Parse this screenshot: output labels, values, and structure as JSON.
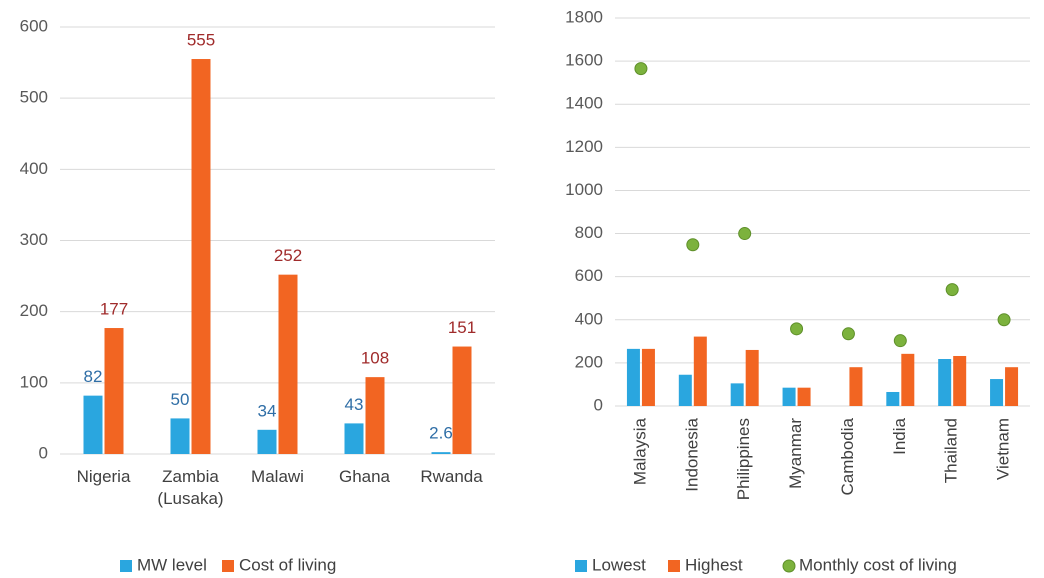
{
  "chart_data": [
    {
      "type": "bar",
      "categories": [
        "Nigeria",
        "Zambia (Lusaka)",
        "Malawi",
        "Ghana",
        "Rwanda"
      ],
      "series": [
        {
          "name": "MW level",
          "color": "#2aa6df",
          "label_color": "#2f6ea6",
          "values": [
            82,
            50,
            34,
            43,
            2.6
          ]
        },
        {
          "name": "Cost of living",
          "color": "#f26522",
          "label_color": "#a02b2b",
          "values": [
            177,
            555,
            252,
            108,
            151
          ]
        }
      ],
      "ylim": [
        0,
        600
      ],
      "yticks": [
        0,
        100,
        200,
        300,
        400,
        500,
        600
      ],
      "grid": true,
      "data_labels": true,
      "legend": "bottom"
    },
    {
      "type": "combo",
      "categories": [
        "Malaysia",
        "Indonesia",
        "Philippines",
        "Myanmar",
        "Cambodia",
        "India",
        "Thailand",
        "Vietnam"
      ],
      "series": [
        {
          "name": "Lowest",
          "type": "bar",
          "color": "#2aa6df",
          "values": [
            265,
            145,
            105,
            85,
            null,
            65,
            218,
            125
          ]
        },
        {
          "name": "Highest",
          "type": "bar",
          "color": "#f26522",
          "values": [
            265,
            322,
            260,
            85,
            180,
            242,
            232,
            180
          ]
        },
        {
          "name": "Monthly cost of living",
          "type": "scatter",
          "color": "#7cb23d",
          "values": [
            1565,
            748,
            800,
            358,
            335,
            303,
            540,
            400
          ]
        }
      ],
      "ylim": [
        0,
        1800
      ],
      "yticks": [
        0,
        200,
        400,
        600,
        800,
        1000,
        1200,
        1400,
        1600,
        1800
      ],
      "grid": true,
      "data_labels": false,
      "legend": "bottom",
      "x_label_rotation": -90
    }
  ]
}
